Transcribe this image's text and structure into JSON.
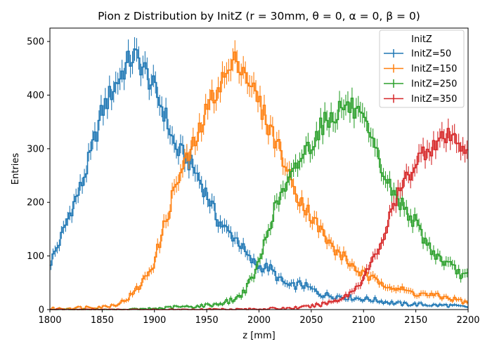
{
  "chart_data": {
    "type": "line",
    "title": "Pion z Distribution by InitZ (r = 30mm, θ = 0, α = 0, β = 0)",
    "xlabel": "z [mm]",
    "ylabel": "Entries",
    "xlim": [
      1800,
      2200
    ],
    "ylim": [
      0,
      525
    ],
    "xticks": [
      1800,
      1850,
      1900,
      1950,
      2000,
      2050,
      2100,
      2150,
      2200
    ],
    "yticks": [
      0,
      100,
      200,
      300,
      400,
      500
    ],
    "grid": false,
    "legend": {
      "title": "InitZ",
      "placement": "top-right"
    },
    "bin_width": 2,
    "series": [
      {
        "name": "InitZ=50",
        "color": "#1f77b4",
        "x": [
          1800,
          1810,
          1820,
          1830,
          1840,
          1850,
          1860,
          1870,
          1880,
          1890,
          1900,
          1910,
          1920,
          1930,
          1940,
          1950,
          1960,
          1970,
          1980,
          1990,
          2000,
          2010,
          2020,
          2030,
          2040,
          2050,
          2060,
          2070,
          2080,
          2090,
          2100,
          2110,
          2120,
          2130,
          2140,
          2150,
          2160,
          2170,
          2180,
          2190,
          2200
        ],
        "y": [
          85,
          130,
          185,
          230,
          295,
          370,
          410,
          445,
          475,
          450,
          410,
          365,
          300,
          285,
          255,
          215,
          170,
          145,
          130,
          95,
          80,
          78,
          55,
          42,
          48,
          38,
          28,
          26,
          24,
          22,
          20,
          18,
          15,
          12,
          10,
          10,
          9,
          8,
          8,
          6,
          5
        ]
      },
      {
        "name": "InitZ=150",
        "color": "#ff7f0e",
        "x": [
          1800,
          1810,
          1820,
          1830,
          1840,
          1850,
          1860,
          1870,
          1880,
          1890,
          1900,
          1910,
          1920,
          1930,
          1940,
          1950,
          1960,
          1970,
          1980,
          1990,
          2000,
          2010,
          2020,
          2030,
          2040,
          2050,
          2060,
          2070,
          2080,
          2090,
          2100,
          2110,
          2120,
          2130,
          2140,
          2150,
          2160,
          2170,
          2180,
          2190,
          2200
        ],
        "y": [
          2,
          2,
          3,
          4,
          5,
          5,
          8,
          15,
          30,
          55,
          90,
          160,
          230,
          275,
          315,
          370,
          415,
          440,
          470,
          430,
          385,
          340,
          300,
          240,
          205,
          175,
          145,
          115,
          100,
          80,
          65,
          55,
          50,
          40,
          35,
          30,
          28,
          25,
          22,
          18,
          12
        ]
      },
      {
        "name": "InitZ=250",
        "color": "#2ca02c",
        "x": [
          1800,
          1810,
          1820,
          1830,
          1840,
          1850,
          1860,
          1870,
          1880,
          1890,
          1900,
          1910,
          1920,
          1930,
          1940,
          1950,
          1960,
          1970,
          1980,
          1990,
          2000,
          2010,
          2020,
          2030,
          2040,
          2050,
          2060,
          2070,
          2080,
          2090,
          2100,
          2110,
          2120,
          2130,
          2140,
          2150,
          2160,
          2170,
          2180,
          2190,
          2200
        ],
        "y": [
          0,
          0,
          0,
          0,
          0,
          0,
          0,
          0,
          1,
          1,
          2,
          3,
          5,
          5,
          6,
          8,
          10,
          15,
          22,
          45,
          85,
          160,
          210,
          240,
          285,
          310,
          345,
          360,
          380,
          375,
          345,
          300,
          250,
          210,
          190,
          160,
          125,
          100,
          85,
          70,
          60
        ]
      },
      {
        "name": "InitZ=350",
        "color": "#d62728",
        "x": [
          1800,
          1810,
          1820,
          1830,
          1840,
          1850,
          1860,
          1870,
          1880,
          1890,
          1900,
          1910,
          1920,
          1930,
          1940,
          1950,
          1960,
          1970,
          1980,
          1990,
          2000,
          2010,
          2020,
          2030,
          2040,
          2050,
          2060,
          2070,
          2080,
          2090,
          2100,
          2110,
          2120,
          2130,
          2140,
          2150,
          2160,
          2170,
          2180,
          2190,
          2200
        ],
        "y": [
          0,
          0,
          0,
          0,
          0,
          0,
          0,
          0,
          0,
          0,
          0,
          0,
          0,
          0,
          0,
          1,
          1,
          1,
          1,
          1,
          1,
          2,
          2,
          3,
          4,
          6,
          10,
          15,
          22,
          35,
          60,
          95,
          140,
          200,
          240,
          275,
          300,
          310,
          320,
          315,
          300
        ]
      }
    ]
  }
}
